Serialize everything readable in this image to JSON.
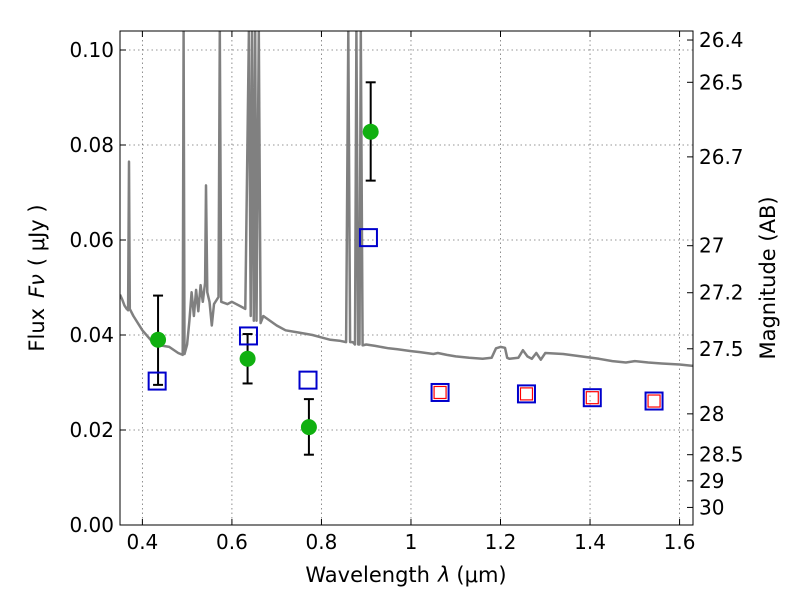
{
  "chart_data": {
    "type": "scatter",
    "xlabel": "Wavelength",
    "xlabel_symbol": "λ",
    "xlabel_unit": "(μm)",
    "ylabel": "Flux",
    "ylabel_symbol": "Fν",
    "ylabel_unit": "( μJy )",
    "y2label": "Magnitude (AB)",
    "xlim": [
      0.35,
      1.63
    ],
    "ylim": [
      0.0,
      0.104
    ],
    "grid": true,
    "x_ticks": [
      {
        "value": 0.4,
        "label": "0.4"
      },
      {
        "value": 0.6,
        "label": "0.6"
      },
      {
        "value": 0.8,
        "label": "0.8"
      },
      {
        "value": 1.0,
        "label": "1"
      },
      {
        "value": 1.2,
        "label": "1.2"
      },
      {
        "value": 1.4,
        "label": "1.4"
      },
      {
        "value": 1.6,
        "label": "1.6"
      }
    ],
    "y_ticks": [
      {
        "value": 0.0,
        "label": "0.00"
      },
      {
        "value": 0.02,
        "label": "0.02"
      },
      {
        "value": 0.04,
        "label": "0.04"
      },
      {
        "value": 0.06,
        "label": "0.06"
      },
      {
        "value": 0.08,
        "label": "0.08"
      },
      {
        "value": 0.1,
        "label": "0.10"
      }
    ],
    "y2_ticks": [
      {
        "label": "26.4",
        "flux": 0.1021
      },
      {
        "label": "26.5",
        "flux": 0.0932
      },
      {
        "label": "26.7",
        "flux": 0.0775
      },
      {
        "label": "27",
        "flux": 0.0588
      },
      {
        "label": "27.2",
        "flux": 0.0489
      },
      {
        "label": "27.5",
        "flux": 0.0371
      },
      {
        "label": "28",
        "flux": 0.0234
      },
      {
        "label": "28.5",
        "flux": 0.0148
      },
      {
        "label": "29",
        "flux": 0.0093
      },
      {
        "label": "30",
        "flux": 0.0037
      }
    ],
    "series": [
      {
        "kind": "model_spectrum",
        "color": "#808080",
        "points": [
          [
            0.35,
            0.0485
          ],
          [
            0.355,
            0.0475
          ],
          [
            0.36,
            0.0462
          ],
          [
            0.365,
            0.0455
          ],
          [
            0.368,
            0.0452
          ],
          [
            0.37,
            0.0765
          ],
          [
            0.372,
            0.0455
          ],
          [
            0.38,
            0.044
          ],
          [
            0.4,
            0.041
          ],
          [
            0.42,
            0.0388
          ],
          [
            0.44,
            0.0378
          ],
          [
            0.46,
            0.0375
          ],
          [
            0.48,
            0.0362
          ],
          [
            0.49,
            0.0358
          ],
          [
            0.492,
            0.104
          ],
          [
            0.494,
            0.036
          ],
          [
            0.5,
            0.038
          ],
          [
            0.505,
            0.043
          ],
          [
            0.51,
            0.049
          ],
          [
            0.515,
            0.044
          ],
          [
            0.52,
            0.0495
          ],
          [
            0.525,
            0.045
          ],
          [
            0.53,
            0.0505
          ],
          [
            0.535,
            0.047
          ],
          [
            0.54,
            0.051
          ],
          [
            0.542,
            0.0715
          ],
          [
            0.545,
            0.049
          ],
          [
            0.55,
            0.047
          ],
          [
            0.555,
            0.042
          ],
          [
            0.56,
            0.0465
          ],
          [
            0.57,
            0.048
          ],
          [
            0.573,
            0.104
          ],
          [
            0.576,
            0.047
          ],
          [
            0.59,
            0.0465
          ],
          [
            0.6,
            0.047
          ],
          [
            0.62,
            0.046
          ],
          [
            0.63,
            0.0455
          ],
          [
            0.638,
            0.104
          ],
          [
            0.642,
            0.044
          ],
          [
            0.645,
            0.104
          ],
          [
            0.649,
            0.043
          ],
          [
            0.652,
            0.104
          ],
          [
            0.655,
            0.043
          ],
          [
            0.66,
            0.104
          ],
          [
            0.664,
            0.0425
          ],
          [
            0.67,
            0.044
          ],
          [
            0.7,
            0.042
          ],
          [
            0.72,
            0.041
          ],
          [
            0.75,
            0.0405
          ],
          [
            0.78,
            0.04
          ],
          [
            0.8,
            0.0395
          ],
          [
            0.82,
            0.039
          ],
          [
            0.84,
            0.0388
          ],
          [
            0.855,
            0.0385
          ],
          [
            0.86,
            0.104
          ],
          [
            0.864,
            0.0385
          ],
          [
            0.87,
            0.0385
          ],
          [
            0.875,
            0.038
          ],
          [
            0.878,
            0.104
          ],
          [
            0.882,
            0.038
          ],
          [
            0.885,
            0.038
          ],
          [
            0.888,
            0.104
          ],
          [
            0.892,
            0.0378
          ],
          [
            0.9,
            0.038
          ],
          [
            0.92,
            0.0377
          ],
          [
            0.95,
            0.0372
          ],
          [
            0.97,
            0.037
          ],
          [
            1.0,
            0.0366
          ],
          [
            1.02,
            0.0364
          ],
          [
            1.05,
            0.036
          ],
          [
            1.06,
            0.0362
          ],
          [
            1.08,
            0.0358
          ],
          [
            1.1,
            0.0355
          ],
          [
            1.13,
            0.0352
          ],
          [
            1.16,
            0.035
          ],
          [
            1.18,
            0.0352
          ],
          [
            1.19,
            0.0372
          ],
          [
            1.2,
            0.0375
          ],
          [
            1.21,
            0.0373
          ],
          [
            1.215,
            0.0352
          ],
          [
            1.22,
            0.035
          ],
          [
            1.24,
            0.0352
          ],
          [
            1.25,
            0.0368
          ],
          [
            1.26,
            0.0355
          ],
          [
            1.27,
            0.035
          ],
          [
            1.28,
            0.0362
          ],
          [
            1.29,
            0.0348
          ],
          [
            1.3,
            0.0362
          ],
          [
            1.34,
            0.036
          ],
          [
            1.38,
            0.0355
          ],
          [
            1.42,
            0.035
          ],
          [
            1.45,
            0.0345
          ],
          [
            1.48,
            0.0342
          ],
          [
            1.5,
            0.0345
          ],
          [
            1.53,
            0.0342
          ],
          [
            1.56,
            0.034
          ],
          [
            1.6,
            0.0338
          ],
          [
            1.63,
            0.0335
          ]
        ]
      },
      {
        "kind": "observed",
        "color": "#10b010",
        "points": [
          {
            "x": 0.435,
            "y": 0.039,
            "yerr_low": 0.0295,
            "yerr_high": 0.0483
          },
          {
            "x": 0.635,
            "y": 0.035,
            "yerr_low": 0.0298,
            "yerr_high": 0.0402
          },
          {
            "x": 0.772,
            "y": 0.0206,
            "yerr_low": 0.0148,
            "yerr_high": 0.0265
          },
          {
            "x": 0.91,
            "y": 0.0828,
            "yerr_low": 0.0725,
            "yerr_high": 0.0932
          }
        ]
      },
      {
        "kind": "model_photometry",
        "color": "#0000cc",
        "points": [
          {
            "x": 0.433,
            "y": 0.0303
          },
          {
            "x": 0.637,
            "y": 0.0398
          },
          {
            "x": 0.77,
            "y": 0.0305
          },
          {
            "x": 0.905,
            "y": 0.0605
          },
          {
            "x": 1.065,
            "y": 0.0279
          },
          {
            "x": 1.258,
            "y": 0.0276
          },
          {
            "x": 1.405,
            "y": 0.0268
          },
          {
            "x": 1.543,
            "y": 0.0261
          }
        ]
      },
      {
        "kind": "model_photometry_nir",
        "color": "#ff0000",
        "points": [
          {
            "x": 1.065,
            "y": 0.0279
          },
          {
            "x": 1.258,
            "y": 0.0276
          },
          {
            "x": 1.405,
            "y": 0.0268
          },
          {
            "x": 1.543,
            "y": 0.0261
          }
        ]
      }
    ]
  }
}
